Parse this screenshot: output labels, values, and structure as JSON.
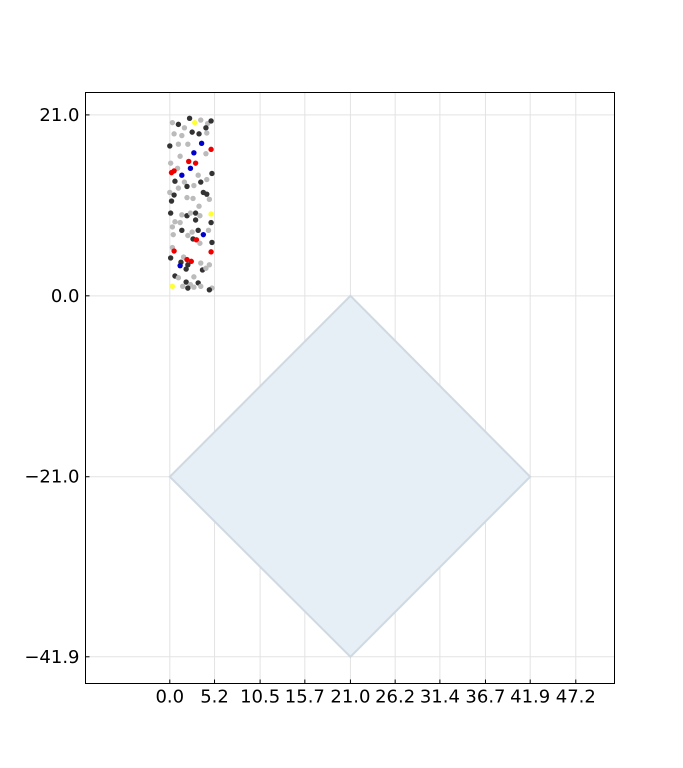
{
  "chart_data": {
    "type": "scatter",
    "title": "",
    "xlabel": "",
    "ylabel": "",
    "xlim": [
      -9.8,
      51.7
    ],
    "ylim": [
      -45.0,
      23.6
    ],
    "grid": true,
    "x_ticks": [
      {
        "value": 0.0,
        "label": "0.0"
      },
      {
        "value": 5.2,
        "label": "5.2"
      },
      {
        "value": 10.5,
        "label": "10.5"
      },
      {
        "value": 15.7,
        "label": "15.7"
      },
      {
        "value": 21.0,
        "label": "21.0"
      },
      {
        "value": 26.2,
        "label": "26.2"
      },
      {
        "value": 31.4,
        "label": "31.4"
      },
      {
        "value": 36.7,
        "label": "36.7"
      },
      {
        "value": 41.9,
        "label": "41.9"
      },
      {
        "value": 47.2,
        "label": "47.2"
      }
    ],
    "y_ticks": [
      {
        "value": 21.0,
        "label": "21.0"
      },
      {
        "value": 0.0,
        "label": "0.0"
      },
      {
        "value": -21.0,
        "label": "−21.0"
      },
      {
        "value": -41.9,
        "label": "−41.9"
      }
    ],
    "region": {
      "fill": "#e6eef6",
      "stroke": "#cfd9e2",
      "vertices": [
        [
          21.0,
          0.0
        ],
        [
          41.9,
          -21.0
        ],
        [
          21.0,
          -41.9
        ],
        [
          0.0,
          -21.0
        ]
      ]
    },
    "colors": {
      "dark": "#333333",
      "light": "#bbbbbb",
      "red": "#ee0000",
      "blue": "#0000cc",
      "yellow": "#ffff33"
    },
    "atoms": [
      {
        "x": 0.3,
        "y": 20.1,
        "c": "light"
      },
      {
        "x": 1.0,
        "y": 19.9,
        "c": "dark"
      },
      {
        "x": 2.3,
        "y": 20.6,
        "c": "dark"
      },
      {
        "x": 2.9,
        "y": 20.1,
        "c": "yellow"
      },
      {
        "x": 3.6,
        "y": 20.4,
        "c": "light"
      },
      {
        "x": 4.4,
        "y": 20.0,
        "c": "light"
      },
      {
        "x": 4.8,
        "y": 20.3,
        "c": "dark"
      },
      {
        "x": 4.2,
        "y": 19.5,
        "c": "dark"
      },
      {
        "x": 1.7,
        "y": 19.5,
        "c": "light"
      },
      {
        "x": 0.5,
        "y": 18.8,
        "c": "light"
      },
      {
        "x": 1.4,
        "y": 18.6,
        "c": "light"
      },
      {
        "x": 2.6,
        "y": 19.0,
        "c": "dark"
      },
      {
        "x": 3.4,
        "y": 18.8,
        "c": "dark"
      },
      {
        "x": 4.3,
        "y": 18.9,
        "c": "light"
      },
      {
        "x": 0.0,
        "y": 17.4,
        "c": "dark"
      },
      {
        "x": 1.0,
        "y": 17.6,
        "c": "light"
      },
      {
        "x": 2.1,
        "y": 17.6,
        "c": "light"
      },
      {
        "x": 3.7,
        "y": 17.7,
        "c": "blue"
      },
      {
        "x": 4.8,
        "y": 17.0,
        "c": "red"
      },
      {
        "x": 2.8,
        "y": 16.6,
        "c": "blue"
      },
      {
        "x": 4.2,
        "y": 16.5,
        "c": "light"
      },
      {
        "x": 1.2,
        "y": 16.2,
        "c": "light"
      },
      {
        "x": 2.2,
        "y": 15.6,
        "c": "red"
      },
      {
        "x": 3.0,
        "y": 15.4,
        "c": "red"
      },
      {
        "x": 0.1,
        "y": 15.4,
        "c": "light"
      },
      {
        "x": 0.9,
        "y": 14.8,
        "c": "light"
      },
      {
        "x": 2.4,
        "y": 14.8,
        "c": "blue"
      },
      {
        "x": 0.5,
        "y": 14.5,
        "c": "red"
      },
      {
        "x": 0.2,
        "y": 14.3,
        "c": "red"
      },
      {
        "x": 1.4,
        "y": 14.0,
        "c": "blue"
      },
      {
        "x": 3.3,
        "y": 14.0,
        "c": "light"
      },
      {
        "x": 4.9,
        "y": 14.2,
        "c": "dark"
      },
      {
        "x": 0.6,
        "y": 13.3,
        "c": "dark"
      },
      {
        "x": 1.7,
        "y": 13.2,
        "c": "light"
      },
      {
        "x": 3.6,
        "y": 13.2,
        "c": "dark"
      },
      {
        "x": 4.3,
        "y": 13.5,
        "c": "light"
      },
      {
        "x": 1.0,
        "y": 12.5,
        "c": "light"
      },
      {
        "x": 2.0,
        "y": 12.7,
        "c": "dark"
      },
      {
        "x": 2.8,
        "y": 12.8,
        "c": "light"
      },
      {
        "x": 0.0,
        "y": 12.0,
        "c": "light"
      },
      {
        "x": 0.5,
        "y": 11.7,
        "c": "dark"
      },
      {
        "x": 2.0,
        "y": 11.4,
        "c": "light"
      },
      {
        "x": 2.7,
        "y": 11.3,
        "c": "light"
      },
      {
        "x": 3.9,
        "y": 12.0,
        "c": "dark"
      },
      {
        "x": 4.3,
        "y": 11.8,
        "c": "dark"
      },
      {
        "x": 4.6,
        "y": 11.2,
        "c": "light"
      },
      {
        "x": 0.2,
        "y": 11.0,
        "c": "dark"
      },
      {
        "x": 3.4,
        "y": 10.4,
        "c": "light"
      },
      {
        "x": 0.1,
        "y": 9.6,
        "c": "dark"
      },
      {
        "x": 1.4,
        "y": 9.4,
        "c": "light"
      },
      {
        "x": 2.0,
        "y": 9.3,
        "c": "dark"
      },
      {
        "x": 2.4,
        "y": 9.6,
        "c": "light"
      },
      {
        "x": 3.0,
        "y": 9.6,
        "c": "dark"
      },
      {
        "x": 3.5,
        "y": 9.3,
        "c": "light"
      },
      {
        "x": 4.8,
        "y": 9.5,
        "c": "yellow"
      },
      {
        "x": 0.6,
        "y": 8.6,
        "c": "light"
      },
      {
        "x": 1.2,
        "y": 8.5,
        "c": "light"
      },
      {
        "x": 3.0,
        "y": 8.8,
        "c": "dark"
      },
      {
        "x": 4.8,
        "y": 8.5,
        "c": "dark"
      },
      {
        "x": 0.3,
        "y": 8.0,
        "c": "light"
      },
      {
        "x": 1.4,
        "y": 7.6,
        "c": "dark"
      },
      {
        "x": 2.6,
        "y": 7.4,
        "c": "light"
      },
      {
        "x": 3.3,
        "y": 7.6,
        "c": "dark"
      },
      {
        "x": 3.9,
        "y": 7.1,
        "c": "blue"
      },
      {
        "x": 4.5,
        "y": 7.6,
        "c": "light"
      },
      {
        "x": 0.4,
        "y": 7.1,
        "c": "light"
      },
      {
        "x": 2.1,
        "y": 7.0,
        "c": "light"
      },
      {
        "x": 2.7,
        "y": 6.6,
        "c": "dark"
      },
      {
        "x": 3.1,
        "y": 6.5,
        "c": "red"
      },
      {
        "x": 3.5,
        "y": 6.1,
        "c": "light"
      },
      {
        "x": 4.9,
        "y": 6.2,
        "c": "dark"
      },
      {
        "x": 0.3,
        "y": 5.6,
        "c": "light"
      },
      {
        "x": 0.5,
        "y": 5.2,
        "c": "red"
      },
      {
        "x": 4.8,
        "y": 5.1,
        "c": "red"
      },
      {
        "x": 0.1,
        "y": 4.4,
        "c": "dark"
      },
      {
        "x": 1.6,
        "y": 4.5,
        "c": "light"
      },
      {
        "x": 2.0,
        "y": 4.2,
        "c": "red"
      },
      {
        "x": 2.5,
        "y": 4.0,
        "c": "red"
      },
      {
        "x": 1.3,
        "y": 3.9,
        "c": "dark"
      },
      {
        "x": 2.1,
        "y": 3.6,
        "c": "dark"
      },
      {
        "x": 1.2,
        "y": 3.5,
        "c": "blue"
      },
      {
        "x": 3.6,
        "y": 3.8,
        "c": "light"
      },
      {
        "x": 4.6,
        "y": 3.6,
        "c": "light"
      },
      {
        "x": 1.9,
        "y": 3.1,
        "c": "dark"
      },
      {
        "x": 3.8,
        "y": 3.0,
        "c": "dark"
      },
      {
        "x": 4.2,
        "y": 3.2,
        "c": "light"
      },
      {
        "x": 0.6,
        "y": 2.3,
        "c": "dark"
      },
      {
        "x": 1.0,
        "y": 2.1,
        "c": "light"
      },
      {
        "x": 2.8,
        "y": 2.2,
        "c": "light"
      },
      {
        "x": 1.9,
        "y": 1.6,
        "c": "dark"
      },
      {
        "x": 2.4,
        "y": 1.3,
        "c": "light"
      },
      {
        "x": 3.3,
        "y": 1.5,
        "c": "dark"
      },
      {
        "x": 0.3,
        "y": 1.1,
        "c": "yellow"
      },
      {
        "x": 1.5,
        "y": 1.1,
        "c": "light"
      },
      {
        "x": 2.1,
        "y": 0.9,
        "c": "dark"
      },
      {
        "x": 2.8,
        "y": 1.0,
        "c": "light"
      },
      {
        "x": 4.9,
        "y": 0.9,
        "c": "light"
      },
      {
        "x": 4.6,
        "y": 0.7,
        "c": "dark"
      },
      {
        "x": 3.6,
        "y": 1.1,
        "c": "light"
      }
    ]
  }
}
